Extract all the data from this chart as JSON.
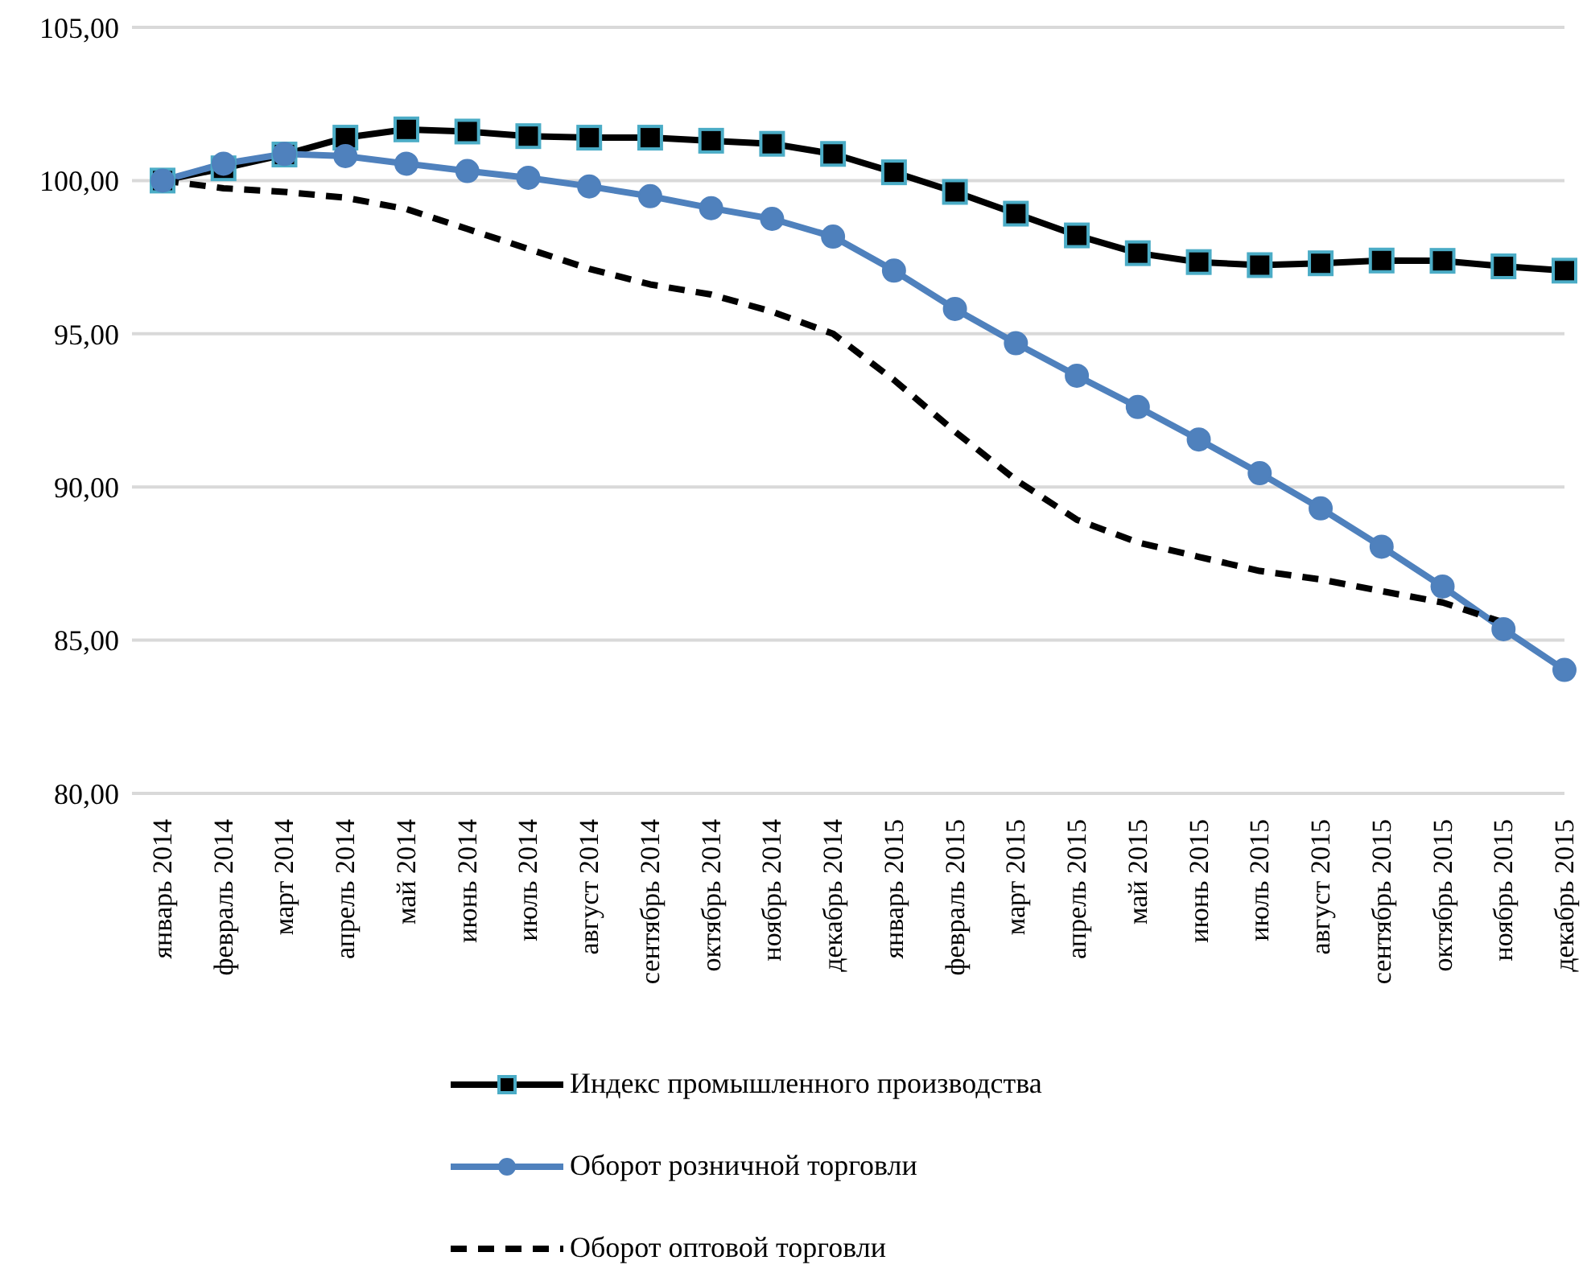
{
  "chart_data": {
    "type": "line",
    "categories": [
      "январь 2014",
      "февраль 2014",
      "март 2014",
      "апрель 2014",
      "май 2014",
      "июнь 2014",
      "июль 2014",
      "август 2014",
      "сентябрь 2014",
      "октябрь 2014",
      "ноябрь 2014",
      "декабрь 2014",
      "январь 2015",
      "февраль 2015",
      "март 2015",
      "апрель 2015",
      "май 2015",
      "июнь 2015",
      "июль 2015",
      "август 2015",
      "сентябрь 2015",
      "октябрь 2015",
      "ноябрь 2015",
      "декабрь 2015"
    ],
    "series": [
      {
        "name": "Индекс промышленного производства",
        "color": "#000000",
        "marker": "square",
        "line_style": "solid",
        "values": [
          100.0,
          100.4,
          100.85,
          101.4,
          101.67,
          101.6,
          101.45,
          101.4,
          101.4,
          101.3,
          101.2,
          100.87,
          100.27,
          99.63,
          98.92,
          98.21,
          97.63,
          97.34,
          97.24,
          97.3,
          97.39,
          97.38,
          97.2,
          97.06
        ]
      },
      {
        "name": "Оборот розничной торговли",
        "color": "#4f81bd",
        "marker": "circle",
        "line_style": "solid",
        "values": [
          100.0,
          100.55,
          100.87,
          100.8,
          100.55,
          100.31,
          100.09,
          99.81,
          99.49,
          99.1,
          98.75,
          98.17,
          97.06,
          95.81,
          94.69,
          93.63,
          92.61,
          91.55,
          90.45,
          89.3,
          88.05,
          86.75,
          85.36,
          84.03
        ]
      },
      {
        "name": "Оборот оптовой торговли",
        "color": "#000000",
        "marker": "none",
        "line_style": "dashed",
        "values": [
          100.0,
          99.75,
          99.63,
          99.44,
          99.07,
          98.42,
          97.77,
          97.12,
          96.61,
          96.28,
          95.72,
          95.0,
          93.49,
          91.81,
          90.23,
          88.93,
          88.19,
          87.72,
          87.26,
          86.98,
          86.6,
          86.23,
          85.58,
          null
        ]
      }
    ],
    "ylim": [
      80,
      105
    ],
    "yticks": [
      {
        "value": 80,
        "label": "80,00"
      },
      {
        "value": 85,
        "label": "85,00"
      },
      {
        "value": 90,
        "label": "90,00"
      },
      {
        "value": 95,
        "label": "95,00"
      },
      {
        "value": 100,
        "label": "100,00"
      },
      {
        "value": 105,
        "label": "105,00"
      }
    ],
    "grid": "y",
    "legend": "bottom"
  }
}
